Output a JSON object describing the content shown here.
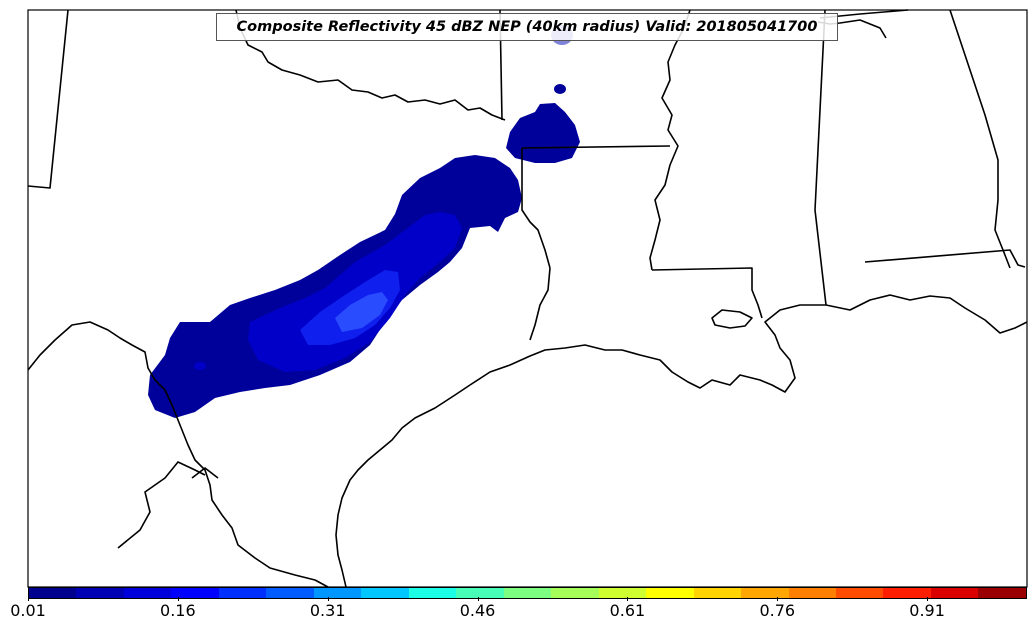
{
  "title": "Composite Reflectivity 45 dBZ NEP (40km radius) Valid: 201805041700",
  "colorbar": {
    "ticks": [
      "0.01",
      "0.16",
      "0.31",
      "0.46",
      "0.61",
      "0.76",
      "0.91"
    ],
    "colors": [
      "#00008f",
      "#0000b5",
      "#0000db",
      "#0000ff",
      "#0030ff",
      "#005cff",
      "#0096ff",
      "#00c8ff",
      "#1affe6",
      "#48ffb7",
      "#7dff82",
      "#a6ff59",
      "#cfff30",
      "#ffff00",
      "#ffd400",
      "#ffa600",
      "#ff7f00",
      "#ff4c00",
      "#ff1f00",
      "#db0000",
      "#9b0000"
    ]
  },
  "fill_colors": {
    "level1": "#00009b",
    "level2": "#0000c9",
    "level3": "#0f1fee",
    "small_cell": "#7f83d9"
  }
}
